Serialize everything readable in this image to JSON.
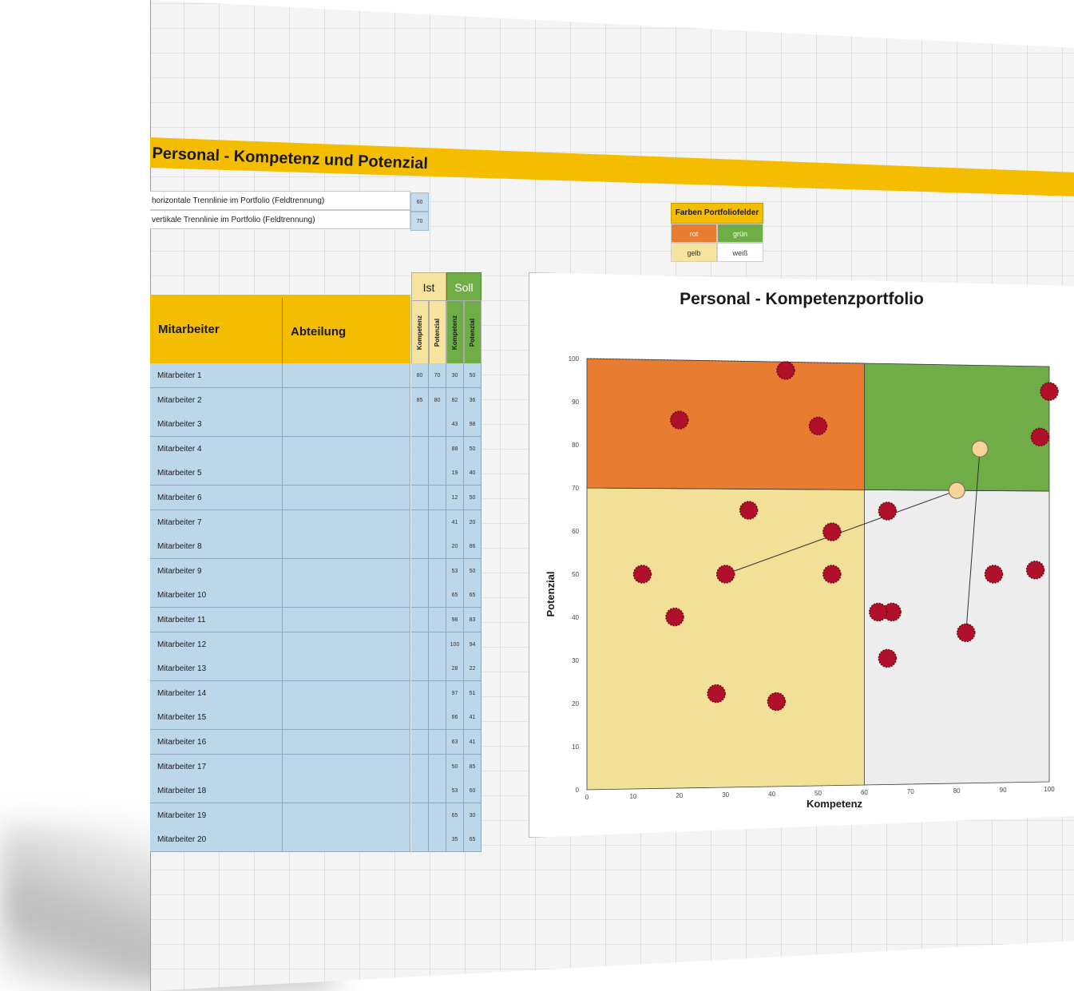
{
  "title": "Personal - Kompetenz und Potenzial",
  "params": [
    {
      "label": "horizontale Trennlinie im Portfolio (Feldtrennung)",
      "value": "60"
    },
    {
      "label": "vertikale Trennlinie im Portfolio (Feldtrennung)",
      "value": "70"
    }
  ],
  "legend": {
    "title": "Farben Portfoliofelder",
    "items": [
      {
        "label": "rot",
        "color": "#e87d32",
        "text_color": "#ffffff"
      },
      {
        "label": "grün",
        "color": "#6fae47",
        "text_color": "#ffffff"
      },
      {
        "label": "gelb",
        "color": "#f5e39e",
        "text_color": "#333333"
      },
      {
        "label": "weiß",
        "color": "#ffffff",
        "text_color": "#333333"
      }
    ]
  },
  "table": {
    "col_mitarbeiter": "Mitarbeiter",
    "col_abteilung": "Abteilung",
    "group_ist": "Ist",
    "group_soll": "Soll",
    "sub_kompetenz": "Kompetenz",
    "sub_potenzial": "Potenzial",
    "rows": [
      {
        "name": "Mitarbeiter 1",
        "ist_k": "80",
        "ist_p": "70",
        "soll_k": "30",
        "soll_p": "50"
      },
      {
        "name": "Mitarbeiter 2",
        "ist_k": "85",
        "ist_p": "80",
        "soll_k": "82",
        "soll_p": "36"
      },
      {
        "name": "Mitarbeiter 3",
        "ist_k": "",
        "ist_p": "",
        "soll_k": "43",
        "soll_p": "98"
      },
      {
        "name": "Mitarbeiter 4",
        "ist_k": "",
        "ist_p": "",
        "soll_k": "88",
        "soll_p": "50"
      },
      {
        "name": "Mitarbeiter 5",
        "ist_k": "",
        "ist_p": "",
        "soll_k": "19",
        "soll_p": "40"
      },
      {
        "name": "Mitarbeiter 6",
        "ist_k": "",
        "ist_p": "",
        "soll_k": "12",
        "soll_p": "50"
      },
      {
        "name": "Mitarbeiter 7",
        "ist_k": "",
        "ist_p": "",
        "soll_k": "41",
        "soll_p": "20"
      },
      {
        "name": "Mitarbeiter 8",
        "ist_k": "",
        "ist_p": "",
        "soll_k": "20",
        "soll_p": "86"
      },
      {
        "name": "Mitarbeiter 9",
        "ist_k": "",
        "ist_p": "",
        "soll_k": "53",
        "soll_p": "50"
      },
      {
        "name": "Mitarbeiter 10",
        "ist_k": "",
        "ist_p": "",
        "soll_k": "65",
        "soll_p": "65"
      },
      {
        "name": "Mitarbeiter 11",
        "ist_k": "",
        "ist_p": "",
        "soll_k": "98",
        "soll_p": "83"
      },
      {
        "name": "Mitarbeiter 12",
        "ist_k": "",
        "ist_p": "",
        "soll_k": "100",
        "soll_p": "94"
      },
      {
        "name": "Mitarbeiter 13",
        "ist_k": "",
        "ist_p": "",
        "soll_k": "28",
        "soll_p": "22"
      },
      {
        "name": "Mitarbeiter 14",
        "ist_k": "",
        "ist_p": "",
        "soll_k": "97",
        "soll_p": "51"
      },
      {
        "name": "Mitarbeiter 15",
        "ist_k": "",
        "ist_p": "",
        "soll_k": "66",
        "soll_p": "41"
      },
      {
        "name": "Mitarbeiter 16",
        "ist_k": "",
        "ist_p": "",
        "soll_k": "63",
        "soll_p": "41"
      },
      {
        "name": "Mitarbeiter 17",
        "ist_k": "",
        "ist_p": "",
        "soll_k": "50",
        "soll_p": "85"
      },
      {
        "name": "Mitarbeiter 18",
        "ist_k": "",
        "ist_p": "",
        "soll_k": "53",
        "soll_p": "60"
      },
      {
        "name": "Mitarbeiter 19",
        "ist_k": "",
        "ist_p": "",
        "soll_k": "65",
        "soll_p": "30"
      },
      {
        "name": "Mitarbeiter 20",
        "ist_k": "",
        "ist_p": "",
        "soll_k": "35",
        "soll_p": "65"
      }
    ]
  },
  "chart_data": {
    "type": "scatter",
    "title": "Personal - Kompetenzportfolio",
    "xlabel": "Kompetenz",
    "ylabel": "Potenzial",
    "xlim": [
      0,
      100
    ],
    "ylim": [
      0,
      100
    ],
    "xticks": [
      0,
      10,
      20,
      30,
      40,
      50,
      60,
      70,
      80,
      90,
      100
    ],
    "yticks": [
      0,
      10,
      20,
      30,
      40,
      50,
      60,
      70,
      80,
      90,
      100
    ],
    "x_split": 60,
    "y_split": 70,
    "quadrant_colors": {
      "top_left": "#e87d32",
      "top_right": "#6fae47",
      "bottom_left": "#f2e096",
      "bottom_right": "#ededed"
    },
    "soll_color": "#b0102a",
    "ist_color": "#f6d39a",
    "soll": [
      {
        "x": 30,
        "y": 50
      },
      {
        "x": 82,
        "y": 36
      },
      {
        "x": 43,
        "y": 98
      },
      {
        "x": 88,
        "y": 50
      },
      {
        "x": 19,
        "y": 40
      },
      {
        "x": 12,
        "y": 50
      },
      {
        "x": 41,
        "y": 20
      },
      {
        "x": 20,
        "y": 86
      },
      {
        "x": 53,
        "y": 50
      },
      {
        "x": 65,
        "y": 65
      },
      {
        "x": 98,
        "y": 83
      },
      {
        "x": 100,
        "y": 94
      },
      {
        "x": 28,
        "y": 22
      },
      {
        "x": 97,
        "y": 51
      },
      {
        "x": 66,
        "y": 41
      },
      {
        "x": 63,
        "y": 41
      },
      {
        "x": 50,
        "y": 85
      },
      {
        "x": 53,
        "y": 60
      },
      {
        "x": 65,
        "y": 30
      },
      {
        "x": 35,
        "y": 65
      }
    ],
    "ist": [
      {
        "x": 80,
        "y": 70
      },
      {
        "x": 85,
        "y": 80
      }
    ],
    "links": [
      [
        0,
        0
      ],
      [
        1,
        1
      ]
    ]
  }
}
